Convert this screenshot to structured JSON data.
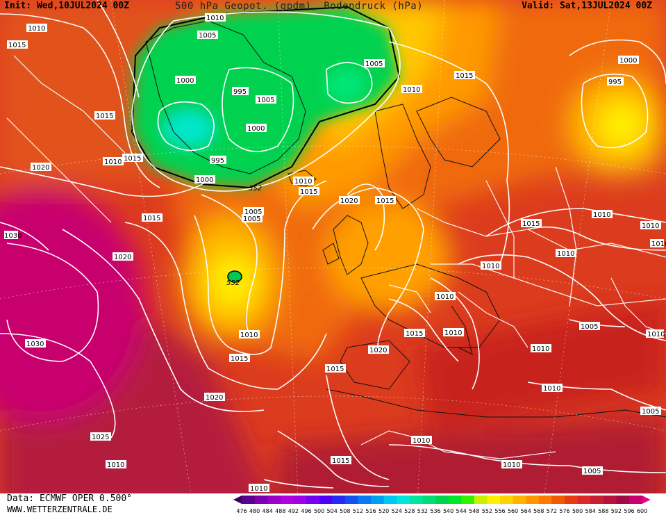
{
  "header": {
    "init": "Init: Wed,10JUL2024 00Z",
    "title": "500 hPa Geopot. (gpdm), Bodendruck (hPa)",
    "valid": "Valid: Sat,13JUL2024 00Z"
  },
  "footer": {
    "data_source": "Data: ECMWF OPER 0.500°",
    "website": "WWW.WETTERZENTRALE.DE"
  },
  "colorbar": {
    "levels": [
      "476",
      "480",
      "484",
      "488",
      "492",
      "496",
      "500",
      "504",
      "508",
      "512",
      "516",
      "520",
      "524",
      "528",
      "532",
      "536",
      "540",
      "544",
      "548",
      "552",
      "556",
      "560",
      "564",
      "568",
      "572",
      "576",
      "580",
      "584",
      "588",
      "592",
      "596",
      "600"
    ],
    "colors": [
      "#3a0060",
      "#5a0090",
      "#7a00b0",
      "#9a00c8",
      "#b400dc",
      "#a000e6",
      "#7800f0",
      "#5000f5",
      "#2828f5",
      "#1450f0",
      "#0a78f0",
      "#00a0f0",
      "#00c8f0",
      "#00e6dc",
      "#00e6a0",
      "#00dc78",
      "#00d250",
      "#00e628",
      "#32f000",
      "#c8f000",
      "#fff000",
      "#ffd200",
      "#ffb400",
      "#ff9600",
      "#ff7800",
      "#f05a00",
      "#e63c14",
      "#dc2828",
      "#c81e32",
      "#b4143c",
      "#a00a46",
      "#c8006e",
      "#e6008c"
    ]
  },
  "pressure_labels": [
    "1010",
    "1015",
    "1010",
    "1005",
    "1020",
    "1015",
    "1005",
    "1000",
    "995",
    "1005",
    "1000",
    "995",
    "1000",
    "1010",
    "552",
    "1010",
    "1015",
    "1015",
    "1005",
    "1005",
    "1020",
    "1015",
    "1020",
    "552",
    "1010",
    "1015",
    "1030",
    "1030",
    "1020",
    "1015",
    "1025",
    "1015",
    "1010",
    "1015",
    "1005",
    "1010",
    "1000",
    "995",
    "1015",
    "1010",
    "1010",
    "1010",
    "1010",
    "1010",
    "1010",
    "1010",
    "1005",
    "1010",
    "1010",
    "1005",
    "1010",
    "1010",
    "1010",
    "1015",
    "1020",
    "1010",
    "1015"
  ]
}
